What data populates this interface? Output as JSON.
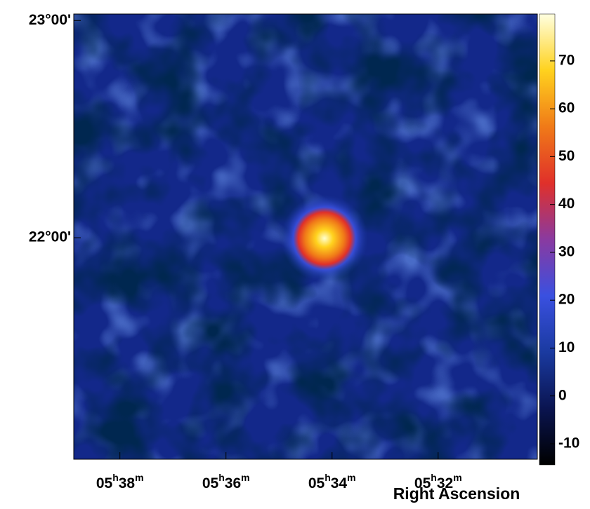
{
  "chart_data": {
    "type": "skymap",
    "xlabel": "Right Ascension",
    "xlim": [
      38.87,
      30.13
    ],
    "xticks": [
      {
        "value": 38,
        "label": "05h38m"
      },
      {
        "value": 36,
        "label": "05h36m"
      },
      {
        "value": 34,
        "label": "05h34m"
      },
      {
        "value": 32,
        "label": "05h32m"
      }
    ],
    "ylim": [
      20.98,
      23.03
    ],
    "yticks": [
      {
        "value": 23,
        "label": "23°00'"
      },
      {
        "value": 22,
        "label": "22°00'"
      }
    ],
    "clim": [
      -14.4,
      79.8
    ],
    "cticks": [
      -10,
      0,
      10,
      20,
      30,
      40,
      50,
      60,
      70
    ],
    "colormap": [
      "#000000",
      "#0a1450",
      "#1a3aa0",
      "#3a50e0",
      "#8a3aa0",
      "#e0302a",
      "#f07a18",
      "#ffd21e",
      "#ffffe0"
    ]
  }
}
